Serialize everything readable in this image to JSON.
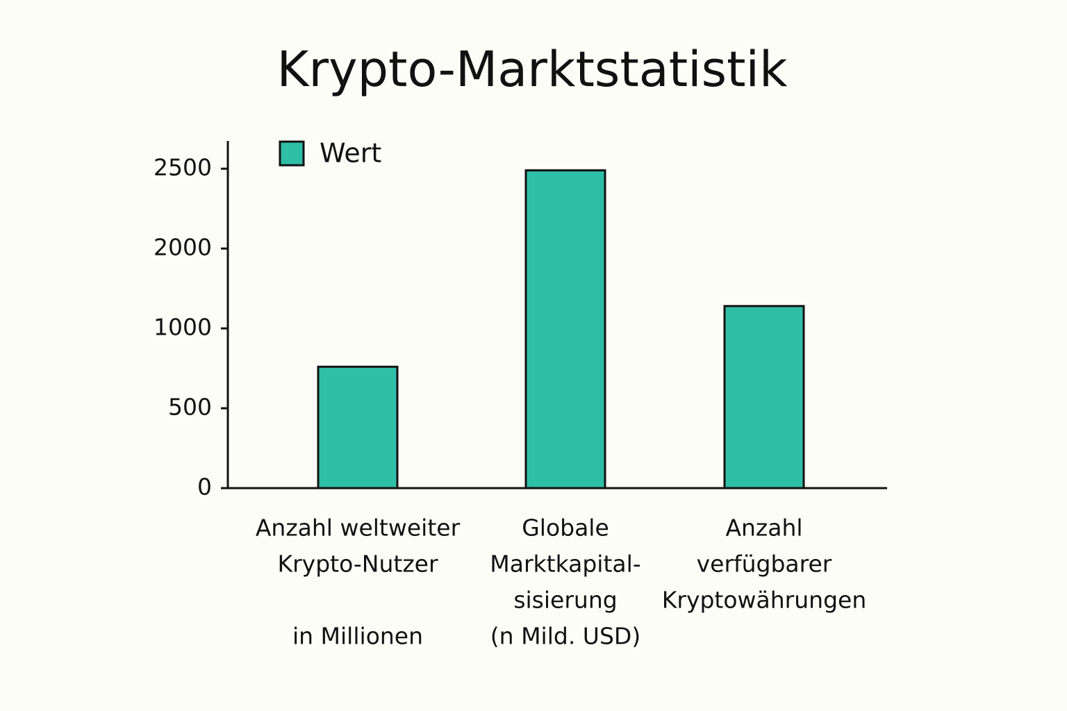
{
  "chart_data": {
    "type": "bar",
    "title": "Krypto-Marktstatistik",
    "categories": [
      [
        "Anzahl weltweiter",
        "Krypto-Nutzer",
        "in Millionen"
      ],
      [
        "Globale",
        "Marktkapital-",
        "sisierung",
        "(n Mild. USD)"
      ],
      [
        "Anzahl",
        "verfügbarer",
        "Kryptowährungen"
      ]
    ],
    "series": [
      {
        "name": "Wert",
        "color": "#2fbfa7",
        "values": [
          760,
          2490,
          1280
        ]
      }
    ],
    "ylim": [
      0,
      2670
    ],
    "yticks": [
      0,
      500,
      1000,
      2000,
      2500
    ],
    "legend": "upper left",
    "grid": false
  }
}
